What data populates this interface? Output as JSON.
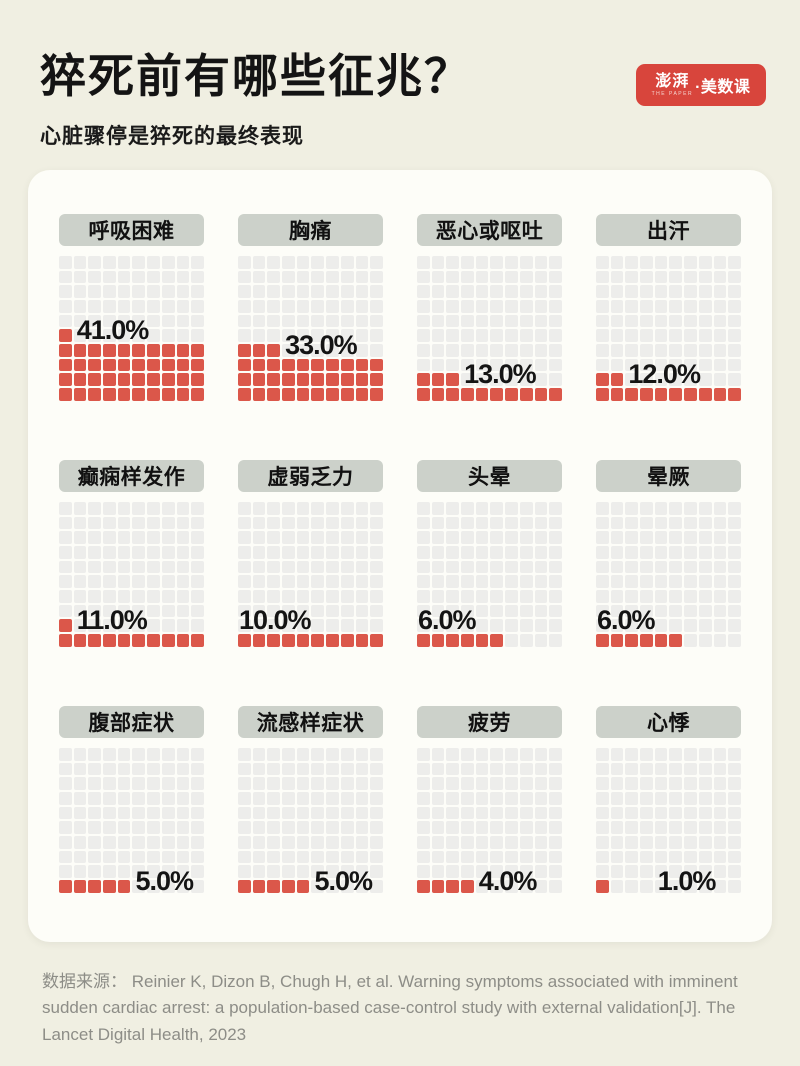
{
  "header": {
    "title": "猝死前有哪些征兆？",
    "subtitle": "心脏骤停是猝死的最终表现",
    "logo": {
      "cn_main": "澎湃",
      "en_sub": "THE PAPER",
      "cn_rest": "·美数课",
      "bg_color": "#d8453c"
    }
  },
  "chart_data": {
    "type": "waffle",
    "title": "猝死前有哪些征兆？",
    "subtitle": "心脏骤停是猝死的最终表现",
    "grid": {
      "columns": 10,
      "rows": 10,
      "square_unit_percent": 1
    },
    "fill_color": "#db574a",
    "empty_color": "#ededeb",
    "badge_color": "#ccd1ca",
    "categories": [
      "呼吸困难",
      "胸痛",
      "恶心或呕吐",
      "出汗",
      "癫痫样发作",
      "虚弱乏力",
      "头晕",
      "晕厥",
      "腹部症状",
      "流感样症状",
      "疲劳",
      "心悸"
    ],
    "values": [
      41.0,
      33.0,
      13.0,
      12.0,
      11.0,
      10.0,
      6.0,
      6.0,
      5.0,
      5.0,
      4.0,
      1.0
    ],
    "value_labels": [
      "41.0%",
      "33.0%",
      "13.0%",
      "12.0%",
      "11.0%",
      "10.0%",
      "6.0%",
      "6.0%",
      "5.0%",
      "5.0%",
      "4.0%",
      "1.0%"
    ],
    "layout": "4 columns x 3 rows of waffle panels, filled bottom-up left-to-right"
  },
  "panels": [
    {
      "label": "呼吸困难",
      "value": 41.0,
      "pct_label": "41.0%",
      "label_cols": 1,
      "label_rows": 4
    },
    {
      "label": "胸痛",
      "value": 33.0,
      "pct_label": "33.0%",
      "label_cols": 3,
      "label_rows": 3
    },
    {
      "label": "恶心或呕吐",
      "value": 13.0,
      "pct_label": "13.0%",
      "label_cols": 3,
      "label_rows": 1
    },
    {
      "label": "出汗",
      "value": 12.0,
      "pct_label": "12.0%",
      "label_cols": 2,
      "label_rows": 1
    },
    {
      "label": "癫痫样发作",
      "value": 11.0,
      "pct_label": "11.0%",
      "label_cols": 1,
      "label_rows": 1
    },
    {
      "label": "虚弱乏力",
      "value": 10.0,
      "pct_label": "10.0%",
      "label_cols": 0,
      "label_rows": 1
    },
    {
      "label": "头晕",
      "value": 6.0,
      "pct_label": "6.0%",
      "label_cols": 0,
      "label_rows": 1
    },
    {
      "label": "晕厥",
      "value": 6.0,
      "pct_label": "6.0%",
      "label_cols": 0,
      "label_rows": 1
    },
    {
      "label": "腹部症状",
      "value": 5.0,
      "pct_label": "5.0%",
      "label_cols": 5,
      "label_rows": 0
    },
    {
      "label": "流感样症状",
      "value": 5.0,
      "pct_label": "5.0%",
      "label_cols": 5,
      "label_rows": 0
    },
    {
      "label": "疲劳",
      "value": 4.0,
      "pct_label": "4.0%",
      "label_cols": 4,
      "label_rows": 0
    },
    {
      "label": "心悸",
      "value": 1.0,
      "pct_label": "1.0%",
      "label_cols": 4,
      "label_rows": 0
    }
  ],
  "footer": {
    "prefix": "数据来源：",
    "source": " Reinier K, Dizon B, Chugh H, et al. Warning symptoms associated with imminent sudden cardiac arrest: a population-based case-control study with external validation[J]. The Lancet Digital Health, 2023"
  }
}
